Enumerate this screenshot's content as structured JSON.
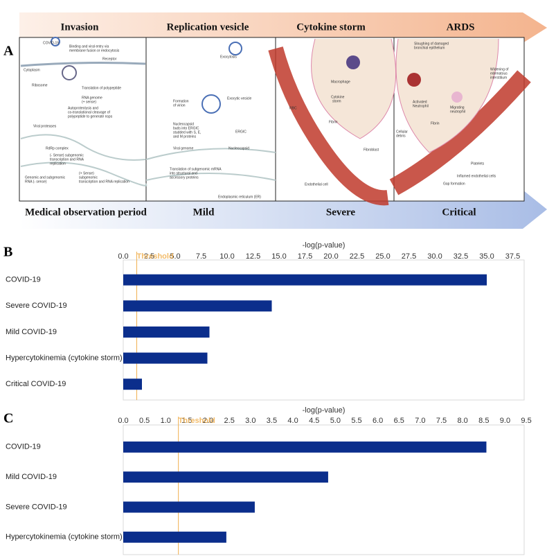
{
  "panel_labels": [
    "A",
    "B",
    "C"
  ],
  "diagram": {
    "stages": [
      "Invasion",
      "Replication  vesicle",
      "Cytokine storm",
      "ARDS"
    ],
    "severity": [
      "Medical observation period",
      "Mild",
      "Severe",
      "Critical"
    ],
    "labels": [
      "COVID-19",
      "Binding and viral entry via",
      "membrane fusion or endocytosis",
      "Receptor",
      "Cytoplasm",
      "Ribosome",
      "Translation of polypeptide",
      "RNA genome",
      "(+ sense)",
      "Autoproteolysis and",
      "co-translational cleavage of",
      "polypeptide to generate nsps",
      "Viral proteases",
      "RdRp complex",
      "(- Sense) subgenomic",
      "transcription and RNA",
      "replication",
      "Genomic and subgenomic",
      "RNA (- sense)",
      "(+ Sense)",
      "subgenomic",
      "transcription and RNA replication",
      "Exocytosis",
      "Formation",
      "of virion",
      "Exocytic vesicle",
      "Nucleocapsid",
      "buds into ERGIC",
      "studded with S, E,",
      "and M proteins",
      "ERGIC",
      "Viral genome",
      "Nucleocapsid",
      "Translation of subgenomic mRNA",
      "into structural and",
      "accessory proteins",
      "Endoplasmic reticulum (ER)",
      "RBC",
      "Macrophage",
      "Cytokine",
      "storm",
      "Fibrin",
      "Fibroblast",
      "Endothelial cell",
      "Sloughing of damaged",
      "bronchial epithelium",
      "Widening of",
      "edematous",
      "interstitium",
      "Activated",
      "Neutrophil",
      "Migrating",
      "neutrophil",
      "Fibrin",
      "Cellular",
      "debris",
      "Platelets",
      "Inflamed endothelial cells",
      "Gap formation"
    ]
  },
  "chart_data": [
    {
      "type": "bar",
      "orientation": "horizontal",
      "x_label": "-log(p-value)",
      "color": "#0b2e8c",
      "categories": [
        "COVID-19",
        "Severe COVID-19",
        "Mild COVID-19",
        "Hypercytokinemia (cytokine storm)",
        "Critical  COVID-19"
      ],
      "values": [
        35.0,
        14.3,
        8.3,
        8.1,
        1.8
      ],
      "threshold": {
        "value": 1.3,
        "label": "Threshold",
        "color": "#f0b050"
      },
      "xlim": [
        0,
        38.6
      ],
      "xticks": [
        {
          "value": 0,
          "label": "0.0"
        },
        2.5,
        {
          "value": 5,
          "label": "5.0"
        },
        7.5,
        {
          "value": 10,
          "label": "10.0"
        },
        12.5,
        {
          "value": 15,
          "label": "15.0"
        },
        17.5,
        {
          "value": 20,
          "label": "20.0"
        },
        22.5,
        {
          "value": 25,
          "label": "25.0"
        },
        27.5,
        {
          "value": 30,
          "label": "30.0"
        },
        32.5,
        {
          "value": 35,
          "label": "35.0"
        },
        37.5
      ]
    },
    {
      "type": "bar",
      "orientation": "horizontal",
      "x_label": "-log(p-value)",
      "color": "#0b2e8c",
      "categories": [
        "COVID-19",
        "Mild COVID-19",
        "Severe COVID-19",
        "Hypercytokinemia (cytokine storm)"
      ],
      "values": [
        8.56,
        4.83,
        3.1,
        2.43
      ],
      "threshold": {
        "value": 1.3,
        "label": "Threshold",
        "color": "#f0b050"
      },
      "xlim": [
        0,
        9.45
      ],
      "xticks": [
        {
          "value": 0,
          "label": "0.0"
        },
        0.5,
        {
          "value": 1,
          "label": "1.0"
        },
        1.5,
        {
          "value": 2,
          "label": "2.0"
        },
        2.5,
        {
          "value": 3,
          "label": "3.0"
        },
        3.5,
        {
          "value": 4,
          "label": "4.0"
        },
        4.5,
        {
          "value": 5,
          "label": "5.0"
        },
        5.5,
        {
          "value": 6,
          "label": "6.0"
        },
        6.5,
        {
          "value": 7,
          "label": "7.0"
        },
        7.5,
        {
          "value": 8,
          "label": "8.0"
        },
        8.5,
        {
          "value": 9,
          "label": "9.0"
        },
        9.5
      ]
    }
  ]
}
